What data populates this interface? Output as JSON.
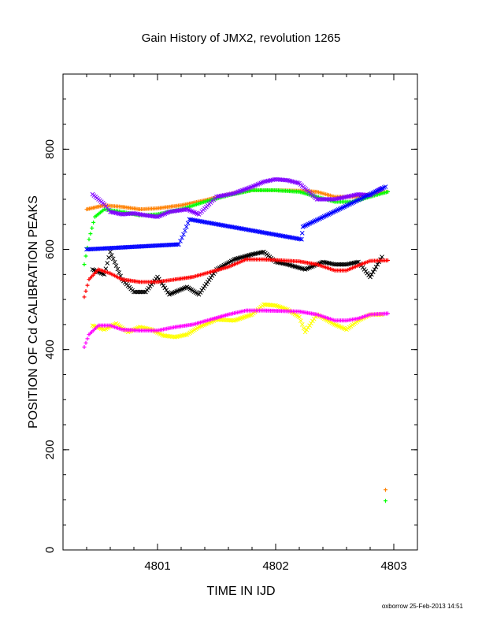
{
  "chart_data": {
    "type": "scatter",
    "title": "Gain History of JMX2, revolution 1265",
    "xlabel": "TIME IN IJD",
    "ylabel": "POSITION OF Cd CALIBRATION PEAKS",
    "xlim": [
      4800.2,
      4803.2
    ],
    "ylim": [
      0,
      950
    ],
    "xticks": [
      4801,
      4802,
      4803
    ],
    "xtick_labels": [
      "4801",
      "4802",
      "4803"
    ],
    "yticks": [
      0,
      200,
      400,
      600,
      800
    ],
    "ytick_labels": [
      "0",
      "200",
      "400",
      "600",
      "800"
    ],
    "grid": false,
    "legend": "none",
    "footer": "oxborrow 25-Feb-2013 14:51",
    "series": [
      {
        "color": "#ff8000",
        "marker": "+",
        "x": [
          4800.4,
          4800.55,
          4800.7,
          4800.85,
          4801.0,
          4801.2,
          4801.4,
          4801.6,
          4801.8,
          4802.0,
          4802.2,
          4802.35,
          4802.5,
          4802.65,
          4802.8,
          4802.95
        ],
        "y": [
          680,
          688,
          685,
          680,
          682,
          688,
          698,
          710,
          718,
          718,
          717,
          715,
          705,
          705,
          710,
          715
        ]
      },
      {
        "color": "#00ff00",
        "marker": "+",
        "x": [
          4800.38,
          4800.42,
          4800.47,
          4800.55,
          4800.7,
          4800.85,
          4801.0,
          4801.2,
          4801.4,
          4801.6,
          4801.8,
          4802.0,
          4802.2,
          4802.35,
          4802.5,
          4802.65,
          4802.8,
          4802.95
        ],
        "y": [
          570,
          620,
          665,
          680,
          675,
          668,
          670,
          680,
          695,
          708,
          718,
          718,
          715,
          705,
          695,
          695,
          705,
          715
        ]
      },
      {
        "color": "#8000ff",
        "marker": "x",
        "x": [
          4800.45,
          4800.55,
          4800.6,
          4800.7,
          4800.8,
          4800.9,
          4801.0,
          4801.1,
          4801.25,
          4801.35,
          4801.5,
          4801.65,
          4801.8,
          4801.9,
          4802.0,
          4802.1,
          4802.2,
          4802.35,
          4802.5,
          4802.6,
          4802.7,
          4802.8,
          4802.9
        ],
        "y": [
          710,
          690,
          675,
          670,
          672,
          668,
          665,
          675,
          680,
          670,
          705,
          712,
          725,
          735,
          740,
          738,
          732,
          700,
          700,
          705,
          710,
          708,
          722
        ]
      },
      {
        "color": "#0000ff",
        "marker": "x",
        "x": [
          4800.4,
          4801.18,
          4801.22,
          4801.27,
          4802.22,
          4802.23,
          4802.93
        ],
        "y": [
          600,
          610,
          630,
          660,
          620,
          645,
          725
        ]
      },
      {
        "color": "#000000",
        "marker": "x",
        "x": [
          4800.45,
          4800.55,
          4800.6,
          4800.7,
          4800.8,
          4800.9,
          4801.0,
          4801.1,
          4801.25,
          4801.35,
          4801.5,
          4801.65,
          4801.8,
          4801.9,
          4802.0,
          4802.1,
          4802.25,
          4802.4,
          4802.5,
          4802.6,
          4802.7,
          4802.8,
          4802.9
        ],
        "y": [
          560,
          550,
          595,
          540,
          515,
          515,
          545,
          510,
          525,
          510,
          560,
          580,
          590,
          595,
          575,
          570,
          560,
          575,
          570,
          570,
          575,
          545,
          585
        ]
      },
      {
        "color": "#ff0000",
        "marker": "+",
        "x": [
          4800.38,
          4800.42,
          4800.5,
          4800.6,
          4800.7,
          4800.85,
          4801.0,
          4801.15,
          4801.3,
          4801.45,
          4801.6,
          4801.75,
          4801.9,
          4802.05,
          4802.2,
          4802.35,
          4802.5,
          4802.6,
          4802.7,
          4802.8,
          4802.95
        ],
        "y": [
          505,
          540,
          560,
          552,
          540,
          535,
          535,
          540,
          545,
          555,
          565,
          580,
          580,
          578,
          576,
          570,
          558,
          558,
          568,
          577,
          578
        ]
      },
      {
        "color": "#ffff00",
        "marker": "x",
        "x": [
          4800.45,
          4800.55,
          4800.65,
          4800.75,
          4800.85,
          4800.95,
          4801.05,
          4801.15,
          4801.25,
          4801.35,
          4801.5,
          4801.65,
          4801.8,
          4801.9,
          4802.0,
          4802.1,
          4802.2,
          4802.25,
          4802.35,
          4802.5,
          4802.6,
          4802.7,
          4802.8,
          4802.9
        ],
        "y": [
          448,
          440,
          452,
          435,
          445,
          440,
          428,
          425,
          430,
          445,
          460,
          458,
          470,
          490,
          488,
          480,
          465,
          435,
          470,
          450,
          440,
          458,
          470,
          470
        ]
      },
      {
        "color": "#ff00ff",
        "marker": "+",
        "x": [
          4800.38,
          4800.42,
          4800.5,
          4800.6,
          4800.7,
          4800.85,
          4801.0,
          4801.15,
          4801.3,
          4801.45,
          4801.6,
          4801.75,
          4801.9,
          4802.05,
          4802.2,
          4802.35,
          4802.5,
          4802.6,
          4802.7,
          4802.8,
          4802.95
        ],
        "y": [
          405,
          430,
          448,
          448,
          440,
          438,
          438,
          445,
          450,
          460,
          470,
          478,
          478,
          477,
          476,
          470,
          458,
          458,
          462,
          470,
          472
        ]
      },
      {
        "color": "#ff8000",
        "marker": "+",
        "x": [
          4802.93
        ],
        "y": [
          120
        ]
      },
      {
        "color": "#00ff00",
        "marker": "+",
        "x": [
          4802.93
        ],
        "y": [
          98
        ]
      }
    ]
  }
}
